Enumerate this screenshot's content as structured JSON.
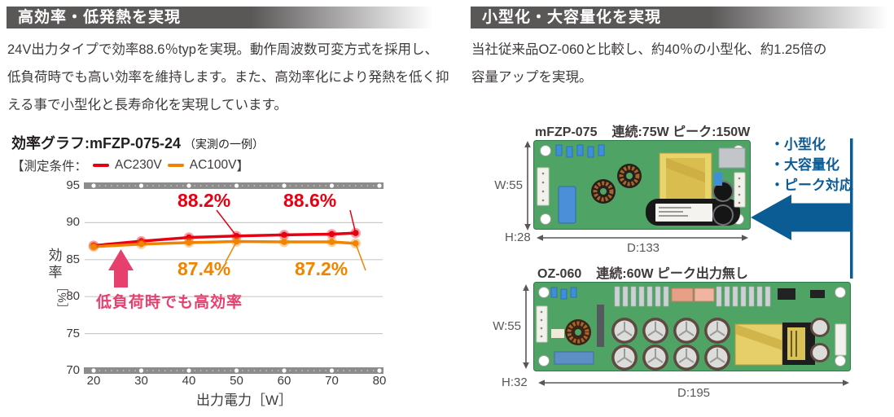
{
  "left": {
    "header": "高効率・低発熱を実現",
    "paragraph_lines": [
      "24V出力タイプで効率88.6％typを実現。動作周波数可変方式を採用し、",
      "低負荷時でも高い効率を維持します。また、高効率化により発熱を低く抑",
      "える事で小型化と長寿命化を実現しています。"
    ],
    "chart_title": "効率グラフ:mFZP-075-24",
    "chart_title_note": "（実測の一例）",
    "legend": {
      "prefix": "【測定条件：",
      "series1": "AC230V",
      "series2": "AC100V",
      "suffix": "】"
    },
    "y_axis_chars": [
      "効",
      "率"
    ],
    "y_axis_unit": "［%］",
    "x_axis_label": "出力電力［W］"
  },
  "right": {
    "header": "小型化・大容量化を実現",
    "paragraph_lines": [
      "当社従来品OZ-060と比較し、約40％の小型化、約1.25倍の",
      "容量アップを実現。"
    ],
    "pcb1": {
      "model": "mFZP-075",
      "spec": "連続:75W ピーク:150W",
      "dims": {
        "w": "W:55",
        "h": "H:28",
        "d": "D:133"
      }
    },
    "pcb2": {
      "model": "OZ-060",
      "spec": "連続:60W ピーク出力無し",
      "dims": {
        "w": "W:55",
        "h": "H:32",
        "d": "D:195"
      }
    },
    "bullets": [
      "・小型化",
      "・大容量化",
      "・ピーク対応"
    ]
  },
  "chart_data": {
    "type": "line",
    "title": "効率グラフ:mFZP-075-24（実測の一例）",
    "xlabel": "出力電力［W］",
    "ylabel": "効率［%］",
    "xlim": [
      20,
      80
    ],
    "ylim": [
      70,
      95
    ],
    "x_ticks": [
      20,
      30,
      40,
      50,
      60,
      70,
      80
    ],
    "y_ticks": [
      95,
      90,
      85,
      80,
      75,
      70
    ],
    "grid": true,
    "legend_position": "top",
    "series": [
      {
        "name": "AC230V",
        "color": "#e60012",
        "x": [
          20,
          30,
          40,
          50,
          60,
          70,
          75
        ],
        "values": [
          86.9,
          87.5,
          88.0,
          88.2,
          88.35,
          88.45,
          88.6
        ]
      },
      {
        "name": "AC100V",
        "color": "#f08300",
        "x": [
          20,
          30,
          40,
          50,
          60,
          70,
          75
        ],
        "values": [
          86.75,
          87.1,
          87.3,
          87.45,
          87.4,
          87.4,
          87.2
        ]
      }
    ],
    "point_labels": [
      {
        "series": "AC230V",
        "x": 50,
        "label": "88.2%"
      },
      {
        "series": "AC230V",
        "x": 75,
        "label": "88.6%"
      },
      {
        "series": "AC100V",
        "x": 50,
        "label": "87.4%"
      },
      {
        "series": "AC100V",
        "x": 75,
        "label": "87.2%"
      }
    ],
    "annotation": "低負荷時でも高効率"
  },
  "colors": {
    "red": "#e60012",
    "orange": "#f08300",
    "pink": "#e7406e",
    "blue": "#0b5b95",
    "header_gray": "#5a5757",
    "text": "#3e3a39",
    "dim": "#595757",
    "pcb_green": "#4fa365"
  }
}
